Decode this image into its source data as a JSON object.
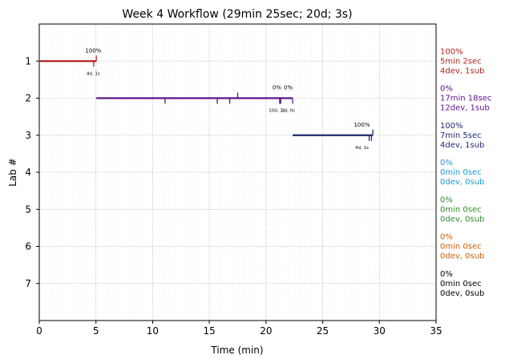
{
  "chart_data": {
    "type": "timeline",
    "title": "Week 4 Workflow (29min 25sec; 20d; 3s)",
    "xlabel": "Time (min)",
    "ylabel": "Lab #",
    "xlim": [
      0,
      35
    ],
    "ylim": [
      0,
      8
    ],
    "x_ticks": [
      0,
      5,
      10,
      15,
      20,
      25,
      30,
      35
    ],
    "y_ticks": [
      1,
      2,
      3,
      4,
      5,
      6,
      7
    ],
    "grid": true,
    "labs": [
      {
        "lab": 1,
        "color": "#b22222",
        "start": 0,
        "end": 5.03,
        "dev_ticks": [
          4.8
        ],
        "sub_ticks": [
          5.03
        ],
        "flags": [
          {
            "x": 4.9,
            "pct": "100%",
            "counts": "4d, 1s"
          }
        ],
        "summary": [
          "100%",
          "5min 2sec",
          "4dev, 1sub"
        ]
      },
      {
        "lab": 2,
        "color": "#5b148c",
        "start": 5.03,
        "end": 22.35,
        "dev_ticks": [
          11.1,
          15.7,
          16.8,
          21.2,
          21.3,
          22.35
        ],
        "sub_ticks": [
          17.5
        ],
        "flags": [
          {
            "x": 21.1,
            "pct": "0%",
            "counts": "10d, 1s"
          },
          {
            "x": 22.1,
            "pct": "0%",
            "counts": "2d, 0s"
          }
        ],
        "summary": [
          "0%",
          "17min 18sec",
          "12dev, 1sub"
        ]
      },
      {
        "lab": 3,
        "color": "#1f2a6e",
        "start": 22.35,
        "end": 29.42,
        "dev_ticks": [
          29.1,
          29.3
        ],
        "sub_ticks": [
          29.42
        ],
        "flags": [
          {
            "x": 28.6,
            "pct": "100%",
            "counts": "4d, 1s"
          }
        ],
        "summary": [
          "100%",
          "7min 5sec",
          "4dev, 1sub"
        ]
      },
      {
        "lab": 4,
        "color": "#1e9ad6",
        "summary": [
          "0%",
          "0min 0sec",
          "0dev, 0sub"
        ]
      },
      {
        "lab": 5,
        "color": "#2e8b2e",
        "summary": [
          "0%",
          "0min 0sec",
          "0dev, 0sub"
        ]
      },
      {
        "lab": 6,
        "color": "#d55e00",
        "summary": [
          "0%",
          "0min 0sec",
          "0dev, 0sub"
        ]
      },
      {
        "lab": 7,
        "color": "#000000",
        "summary": [
          "0%",
          "0min 0sec",
          "0dev, 0sub"
        ]
      }
    ]
  }
}
